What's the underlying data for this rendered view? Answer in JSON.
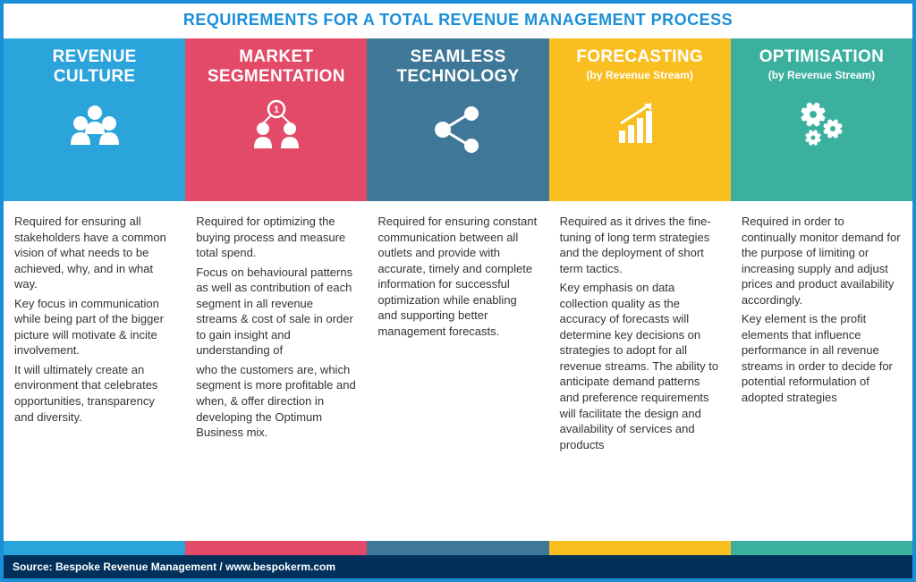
{
  "title": "REQUIREMENTS FOR A TOTAL REVENUE MANAGEMENT PROCESS",
  "title_color": "#1a8fd8",
  "title_fontsize": 18,
  "border_color": "#1a8fd8",
  "source": "Source: Bespoke Revenue Management / www.bespokerm.com",
  "source_bg": "#01305b",
  "source_color": "#ffffff",
  "source_fontsize": 12,
  "body_fontsize": 13,
  "body_color": "#333333",
  "header_title_fontsize": 19,
  "header_subtitle_fontsize": 12,
  "columns": [
    {
      "title": "REVENUE CULTURE",
      "subtitle": "",
      "color": "#2ba4dc",
      "icon": "people-icon",
      "body": [
        "Required for ensuring all stakeholders have a common vision of what needs to be achieved, why, and in what way.",
        "Key focus in communication while being part of the bigger picture will motivate & incite involvement.",
        "It will ultimately create an environment that celebrates opportunities, transparency and diversity."
      ]
    },
    {
      "title": "MARKET SEGMENTATION",
      "subtitle": "",
      "color": "#e24a68",
      "icon": "segmentation-icon",
      "body": [
        "Required for optimizing the buying process and measure total spend.",
        "Focus on behavioural patterns as well as contribution of each segment in all revenue streams & cost of sale in order to gain insight and understanding of",
        "who the customers are, which segment is more profitable and when, & offer direction in developing the Optimum Business mix."
      ]
    },
    {
      "title": "SEAMLESS TECHNOLOGY",
      "subtitle": "",
      "color": "#3e7797",
      "icon": "share-icon",
      "body": [
        "Required for ensuring constant communication between all outlets and provide with accurate, timely and complete information for successful optimization while enabling and supporting better management forecasts."
      ]
    },
    {
      "title": "FORECASTING",
      "subtitle": "(by Revenue Stream)",
      "color": "#f9be1f",
      "icon": "chart-arrow-icon",
      "body": [
        "Required as it drives the fine-tuning of long term strategies and the deployment of short term tactics.",
        "Key emphasis on data collection quality as the accuracy of forecasts will determine key decisions on strategies to adopt for all revenue streams. The ability to anticipate demand patterns and preference requirements will facilitate the design and availability of services and products"
      ]
    },
    {
      "title": "OPTIMISATION",
      "subtitle": "(by Revenue Stream)",
      "color": "#3bb09e",
      "icon": "gears-icon",
      "body": [
        "Required in order to continually monitor demand for the purpose of limiting or increasing supply and adjust prices and product availability accordingly.",
        "Key element is the profit elements that influence performance in all revenue streams in order to decide for potential reformulation of adopted strategies"
      ]
    }
  ]
}
